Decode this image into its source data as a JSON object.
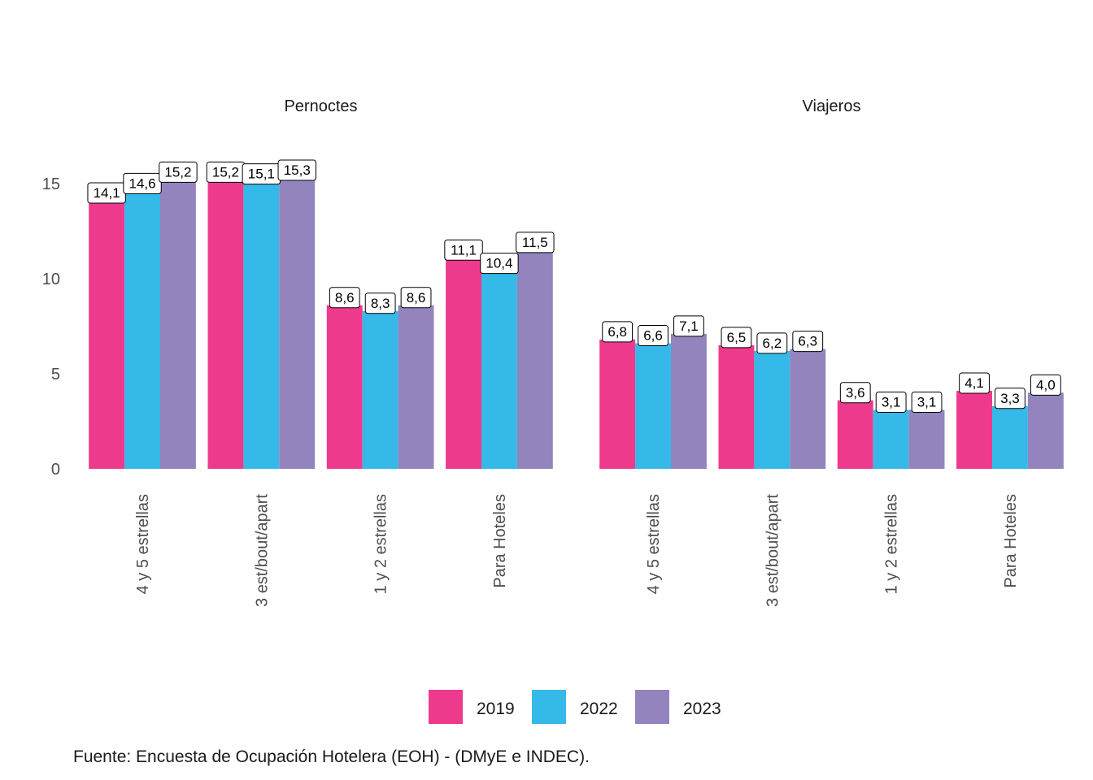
{
  "chart_data": {
    "type": "bar",
    "facets": [
      {
        "title": "Pernoctes",
        "categories": [
          "4 y 5 estrellas",
          "3 est/bout/apart",
          "1 y 2 estrellas",
          "Para Hoteles"
        ],
        "series": [
          {
            "name": "2019",
            "values": [
              14.1,
              15.2,
              8.6,
              11.1
            ],
            "labels": [
              "14,1",
              "15,2",
              "8,6",
              "11,1"
            ]
          },
          {
            "name": "2022",
            "values": [
              14.6,
              15.1,
              8.3,
              10.4
            ],
            "labels": [
              "14,6",
              "15,1",
              "8,3",
              "10,4"
            ]
          },
          {
            "name": "2023",
            "values": [
              15.2,
              15.3,
              8.6,
              11.5
            ],
            "labels": [
              "15,2",
              "15,3",
              "8,6",
              "11,5"
            ]
          }
        ]
      },
      {
        "title": "Viajeros",
        "categories": [
          "4 y 5 estrellas",
          "3 est/bout/apart",
          "1 y 2 estrellas",
          "Para Hoteles"
        ],
        "series": [
          {
            "name": "2019",
            "values": [
              6.8,
              6.5,
              3.6,
              4.1
            ],
            "labels": [
              "6,8",
              "6,5",
              "3,6",
              "4,1"
            ]
          },
          {
            "name": "2022",
            "values": [
              6.6,
              6.2,
              3.1,
              3.3
            ],
            "labels": [
              "6,6",
              "6,2",
              "3,1",
              "3,3"
            ]
          },
          {
            "name": "2023",
            "values": [
              7.1,
              6.3,
              3.1,
              4.0
            ],
            "labels": [
              "7,1",
              "6,3",
              "3,1",
              "4,0"
            ]
          }
        ]
      }
    ],
    "y_ticks": [
      0,
      5,
      10,
      15
    ],
    "ylim": [
      0,
      16.2
    ],
    "grid": false,
    "legend": {
      "position": "bottom",
      "entries": [
        "2019",
        "2022",
        "2023"
      ]
    },
    "colors": {
      "2019": "#ee3a8c",
      "2022": "#35b9e9",
      "2023": "#9384be"
    }
  },
  "caption": "Fuente: Encuesta de Ocupación Hotelera (EOH) - (DMyE e INDEC)."
}
